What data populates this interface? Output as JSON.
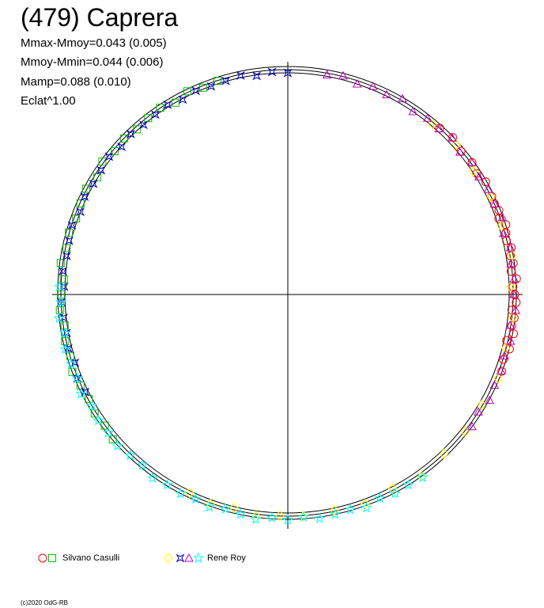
{
  "chart_data": {
    "type": "scatter",
    "title": "(479) Caprera",
    "stats": [
      "Mmax-Mmoy=0.043 (0.005)",
      "Mmoy-Mmin=0.044 (0.006)",
      "Mamp=0.088 (0.010)",
      "Eclat^1.00"
    ],
    "description_axes": "polar lightcurve plot, phase as angle, magnitude as radius",
    "model_curves": [
      {
        "name": "mean",
        "rx": 286,
        "ry": 282
      },
      {
        "name": "upper",
        "rx": 290,
        "ry": 286
      },
      {
        "name": "lower",
        "rx": 281,
        "ry": 278
      }
    ],
    "series": [
      {
        "name": "Silvano Casulli",
        "marker": "circle",
        "color": "#ff0000",
        "phase_deg": [
          340,
          343,
          346,
          348,
          350,
          352,
          354,
          356,
          358,
          0,
          2,
          4,
          6,
          8,
          10,
          12,
          14,
          16,
          18,
          20,
          22,
          24,
          26,
          30,
          33,
          36,
          40,
          44,
          48
        ],
        "radius": [
          288,
          285,
          289,
          283,
          290,
          286,
          288,
          284,
          289,
          287,
          285,
          290,
          284,
          288,
          286,
          289,
          285,
          287,
          290,
          284,
          288,
          286,
          287,
          289,
          285,
          288,
          286,
          290,
          287
        ]
      },
      {
        "name": "Silvano Casulli",
        "marker": "square",
        "color": "#00c000",
        "phase_deg": [
          108,
          112,
          116,
          120,
          124,
          128,
          132,
          136,
          140,
          144,
          148,
          152,
          156,
          160,
          164,
          168,
          172,
          176,
          180,
          184,
          188,
          192,
          196,
          200,
          204,
          208,
          212,
          216,
          220
        ],
        "radius": [
          288,
          286,
          290,
          284,
          289,
          287,
          285,
          288,
          286,
          290,
          284,
          289,
          287,
          285,
          288,
          286,
          290,
          284,
          287,
          289,
          285,
          288,
          286,
          290,
          287,
          285,
          288,
          286,
          289
        ]
      },
      {
        "name": "Rene Roy",
        "marker": "diamond",
        "color": "#ffff00",
        "phase_deg": [
          244,
          250,
          256,
          262,
          268,
          274,
          282,
          290,
          298,
          306,
          314,
          322,
          330,
          338,
          346,
          354,
          2,
          10,
          18,
          26,
          34,
          42,
          50
        ],
        "radius": [
          283,
          286,
          282,
          287,
          284,
          285,
          283,
          286,
          282,
          288,
          284,
          285,
          283,
          287,
          284,
          286,
          282,
          288,
          284,
          286,
          283,
          287,
          285
        ]
      },
      {
        "name": "Rene Roy",
        "marker": "x-star",
        "color": "#0000c0",
        "phase_deg": [
          90,
          94,
          98,
          102,
          106,
          110,
          114,
          118,
          122,
          126,
          130,
          134,
          138,
          142,
          146,
          150,
          154,
          158,
          162,
          166,
          170,
          174,
          178,
          182,
          186,
          190,
          194,
          198,
          202,
          206
        ],
        "radius": [
          284,
          286,
          283,
          287,
          285,
          284,
          286,
          283,
          287,
          285,
          284,
          286,
          283,
          287,
          285,
          284,
          286,
          283,
          287,
          285,
          284,
          286,
          283,
          287,
          285,
          284,
          286,
          283,
          287,
          285
        ]
      },
      {
        "name": "Rene Roy",
        "marker": "triangle",
        "color": "#c000c0",
        "phase_deg": [
          80,
          76,
          72,
          68,
          64,
          60,
          56,
          52,
          48,
          44,
          40,
          36,
          32,
          28,
          24,
          20,
          16,
          12,
          8,
          4,
          0,
          356,
          352,
          348,
          344,
          340,
          336,
          332,
          328,
          324
        ],
        "radius": [
          286,
          289,
          284,
          288,
          285,
          290,
          283,
          287,
          286,
          289,
          284,
          288,
          285,
          287,
          286,
          289,
          284,
          288,
          285,
          287,
          286,
          289,
          284,
          288,
          285,
          287,
          286,
          289,
          284,
          288
        ]
      },
      {
        "name": "Rene Roy",
        "marker": "star",
        "color": "#00ffff",
        "phase_deg": [
          178,
          182,
          186,
          190,
          194,
          198,
          202,
          206,
          210,
          214,
          218,
          222,
          226,
          230,
          234,
          238,
          242,
          246,
          250,
          254,
          258,
          262,
          266,
          270,
          274,
          278,
          282,
          286,
          290,
          294,
          298,
          302,
          306
        ],
        "radius": [
          289,
          287,
          291,
          286,
          290,
          288,
          287,
          291,
          286,
          289,
          288,
          290,
          287,
          286,
          291,
          288,
          289,
          287,
          290,
          286,
          288,
          291,
          287,
          289,
          286,
          290,
          288,
          287,
          291,
          286,
          289,
          288,
          290
        ]
      }
    ],
    "legend": [
      {
        "label": "Silvano Casulli",
        "markers": [
          "circle",
          "square"
        ],
        "colors": [
          "#ff0000",
          "#00c000"
        ]
      },
      {
        "label": "Rene Roy",
        "markers": [
          "diamond",
          "x-star",
          "triangle",
          "star"
        ],
        "colors": [
          "#ffff00",
          "#0000c0",
          "#c000c0",
          "#00ffff"
        ]
      }
    ]
  },
  "credit": "(c)2020 OdG-RB"
}
